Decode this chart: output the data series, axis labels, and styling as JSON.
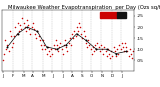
{
  "title": "Milwaukee Weather Evapotranspiration  per Day (Ozs sq/ft)",
  "title_fontsize": 3.8,
  "background_color": "#ffffff",
  "plot_bg_color": "#ffffff",
  "grid_color": "#bbbbbb",
  "xlim": [
    -1,
    114
  ],
  "ylim": [
    0,
    0.275
  ],
  "yticks": [
    0.05,
    0.1,
    0.15,
    0.2,
    0.25
  ],
  "ytick_labels": [
    ".05",
    ".10",
    ".15",
    ".20",
    ".25"
  ],
  "ytick_fontsize": 3.2,
  "xtick_fontsize": 3.0,
  "x_month_starts": [
    0,
    9,
    18,
    26,
    35,
    43,
    52,
    60,
    69,
    77,
    86,
    95,
    103
  ],
  "x_month_labels": [
    "J",
    "F",
    "M",
    "A",
    "M",
    "J",
    "J",
    "A",
    "S",
    "O",
    "N",
    "D",
    "J"
  ],
  "vline_positions": [
    8.5,
    17.5,
    25.5,
    34.5,
    42.5,
    51.5,
    59.5,
    68.5,
    76.5,
    85.5,
    94.5,
    102.5
  ],
  "daily_x": [
    0,
    1,
    2,
    3,
    4,
    5,
    6,
    7,
    8,
    9,
    10,
    11,
    12,
    13,
    14,
    15,
    16,
    17,
    18,
    19,
    20,
    21,
    22,
    23,
    24,
    25,
    26,
    27,
    28,
    29,
    30,
    31,
    32,
    33,
    34,
    35,
    36,
    37,
    38,
    39,
    40,
    41,
    42,
    43,
    44,
    45,
    46,
    47,
    48,
    49,
    50,
    51,
    52,
    53,
    54,
    55,
    56,
    57,
    58,
    59,
    60,
    61,
    62,
    63,
    64,
    65,
    66,
    67,
    68,
    69,
    70,
    71,
    72,
    73,
    74,
    75,
    76,
    77,
    78,
    79,
    80,
    81,
    82,
    83,
    84,
    85,
    86,
    87,
    88,
    89,
    90,
    91,
    92,
    93,
    94,
    95,
    96,
    97,
    98,
    99,
    100,
    101,
    102,
    103,
    104,
    105,
    106,
    107,
    108,
    109,
    110,
    111,
    112,
    113
  ],
  "daily_y": [
    0.05,
    0.08,
    0.14,
    0.1,
    0.12,
    0.09,
    0.18,
    0.16,
    0.11,
    0.13,
    0.16,
    0.2,
    0.17,
    0.22,
    0.18,
    0.21,
    0.19,
    0.24,
    0.22,
    0.2,
    0.18,
    0.23,
    0.21,
    0.19,
    0.17,
    0.2,
    0.22,
    0.19,
    0.17,
    0.15,
    0.18,
    0.16,
    0.14,
    0.12,
    0.1,
    0.14,
    0.12,
    0.1,
    0.08,
    0.11,
    0.09,
    0.07,
    0.1,
    0.08,
    0.12,
    0.1,
    0.14,
    0.12,
    0.09,
    0.11,
    0.13,
    0.1,
    0.08,
    0.12,
    0.14,
    0.11,
    0.09,
    0.13,
    0.15,
    0.12,
    0.17,
    0.15,
    0.18,
    0.16,
    0.2,
    0.18,
    0.22,
    0.2,
    0.17,
    0.15,
    0.18,
    0.16,
    0.13,
    0.11,
    0.14,
    0.12,
    0.1,
    0.08,
    0.11,
    0.09,
    0.12,
    0.1,
    0.13,
    0.11,
    0.09,
    0.12,
    0.1,
    0.08,
    0.11,
    0.09,
    0.07,
    0.1,
    0.08,
    0.06,
    0.09,
    0.07,
    0.11,
    0.09,
    0.07,
    0.1,
    0.08,
    0.12,
    0.1,
    0.13,
    0.11,
    0.09,
    0.13,
    0.11,
    0.09,
    0.07,
    0.1,
    0.08,
    0.06,
    0.09
  ],
  "monthly_avg_x": [
    4,
    13,
    21,
    30,
    38,
    47,
    55,
    64,
    72,
    81,
    90,
    98,
    107
  ],
  "monthly_avg_y": [
    0.11,
    0.17,
    0.2,
    0.18,
    0.11,
    0.1,
    0.12,
    0.17,
    0.14,
    0.1,
    0.1,
    0.08,
    0.09
  ],
  "dot_color_daily": "#cc0000",
  "dot_color_monthly": "#000000",
  "dot_size_daily": 1.2,
  "dot_size_monthly": 2.0,
  "legend_box_color_red": "#cc0000",
  "legend_box_color_black": "#111111"
}
